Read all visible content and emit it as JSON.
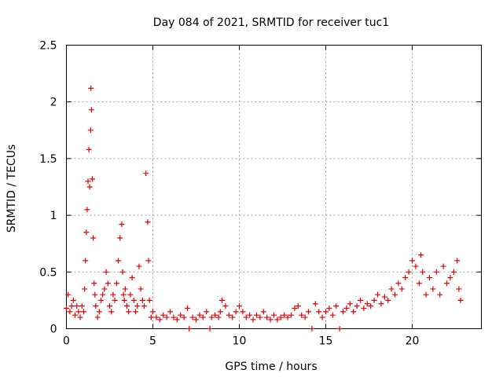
{
  "chart_data": {
    "type": "scatter",
    "title": "Day 084 of 2021, SRMTID for receiver tuc1",
    "xlabel": "GPS time / hours",
    "ylabel": "SRMTID / TECUs",
    "xlim": [
      0,
      24
    ],
    "ylim": [
      0,
      2.5
    ],
    "xticks": [
      0,
      5,
      10,
      15,
      20
    ],
    "xtick_labels": [
      "0",
      "5",
      "10",
      "15",
      "20"
    ],
    "yticks": [
      0,
      0.5,
      1,
      1.5,
      2,
      2.5
    ],
    "ytick_labels": [
      "0",
      "0.5",
      "1",
      "1.5",
      "2",
      "2.5"
    ],
    "grid": true,
    "marker": "+",
    "series": [
      {
        "name": "SRMTID",
        "color": "#e00000",
        "x": [
          0.0,
          0.1,
          0.2,
          0.3,
          0.4,
          0.5,
          0.6,
          0.7,
          0.8,
          0.9,
          1.0,
          1.05,
          1.1,
          1.15,
          1.2,
          1.25,
          1.3,
          1.35,
          1.4,
          1.42,
          1.45,
          1.5,
          1.55,
          1.6,
          1.65,
          1.7,
          1.8,
          1.9,
          2.0,
          2.1,
          2.2,
          2.3,
          2.4,
          2.5,
          2.6,
          2.7,
          2.8,
          2.9,
          3.0,
          3.1,
          3.2,
          3.25,
          3.3,
          3.35,
          3.4,
          3.5,
          3.6,
          3.7,
          3.8,
          3.9,
          4.0,
          4.1,
          4.2,
          4.3,
          4.4,
          4.5,
          4.6,
          4.7,
          4.75,
          4.8,
          4.9,
          5.0,
          5.2,
          5.4,
          5.6,
          5.8,
          6.0,
          6.2,
          6.4,
          6.6,
          6.8,
          7.0,
          7.1,
          7.3,
          7.5,
          7.7,
          7.9,
          8.1,
          8.3,
          8.4,
          8.6,
          8.8,
          8.9,
          9.0,
          9.2,
          9.4,
          9.6,
          9.8,
          10.0,
          10.2,
          10.4,
          10.6,
          10.8,
          11.0,
          11.2,
          11.4,
          11.6,
          11.8,
          12.0,
          12.2,
          12.4,
          12.6,
          12.8,
          13.0,
          13.2,
          13.4,
          13.6,
          13.8,
          14.0,
          14.2,
          14.4,
          14.6,
          14.8,
          15.0,
          15.2,
          15.4,
          15.6,
          15.8,
          16.0,
          16.2,
          16.4,
          16.6,
          16.8,
          17.0,
          17.2,
          17.4,
          17.6,
          17.8,
          18.0,
          18.2,
          18.4,
          18.6,
          18.8,
          19.0,
          19.2,
          19.4,
          19.6,
          19.8,
          20.0,
          20.2,
          20.4,
          20.5,
          20.6,
          20.8,
          21.0,
          21.2,
          21.4,
          21.6,
          21.8,
          22.0,
          22.2,
          22.4,
          22.6,
          22.7,
          22.8
        ],
        "y": [
          0.18,
          0.3,
          0.15,
          0.2,
          0.25,
          0.12,
          0.2,
          0.15,
          0.1,
          0.2,
          0.15,
          0.35,
          0.6,
          0.85,
          1.05,
          1.3,
          1.58,
          1.25,
          1.75,
          2.12,
          1.93,
          1.32,
          0.8,
          0.4,
          0.3,
          0.2,
          0.1,
          0.15,
          0.25,
          0.3,
          0.35,
          0.5,
          0.4,
          0.2,
          0.15,
          0.3,
          0.25,
          0.4,
          0.6,
          0.8,
          0.92,
          0.5,
          0.3,
          0.25,
          0.35,
          0.2,
          0.15,
          0.3,
          0.45,
          0.25,
          0.15,
          0.2,
          0.55,
          0.35,
          0.25,
          0.2,
          1.37,
          0.94,
          0.6,
          0.25,
          0.1,
          0.15,
          0.1,
          0.08,
          0.12,
          0.1,
          0.15,
          0.1,
          0.08,
          0.12,
          0.1,
          0.18,
          0.0,
          0.1,
          0.08,
          0.12,
          0.1,
          0.15,
          0.0,
          0.1,
          0.12,
          0.1,
          0.15,
          0.25,
          0.2,
          0.12,
          0.1,
          0.15,
          0.2,
          0.15,
          0.1,
          0.12,
          0.08,
          0.12,
          0.1,
          0.15,
          0.1,
          0.08,
          0.12,
          0.08,
          0.1,
          0.12,
          0.1,
          0.12,
          0.18,
          0.2,
          0.12,
          0.1,
          0.15,
          0.0,
          0.22,
          0.15,
          0.1,
          0.15,
          0.18,
          0.12,
          0.2,
          0.0,
          0.15,
          0.18,
          0.22,
          0.15,
          0.2,
          0.25,
          0.18,
          0.22,
          0.2,
          0.25,
          0.3,
          0.22,
          0.28,
          0.25,
          0.35,
          0.3,
          0.4,
          0.35,
          0.45,
          0.5,
          0.6,
          0.55,
          0.4,
          0.65,
          0.5,
          0.3,
          0.45,
          0.35,
          0.5,
          0.3,
          0.55,
          0.4,
          0.45,
          0.5,
          0.6,
          0.35,
          0.25
        ]
      }
    ]
  }
}
